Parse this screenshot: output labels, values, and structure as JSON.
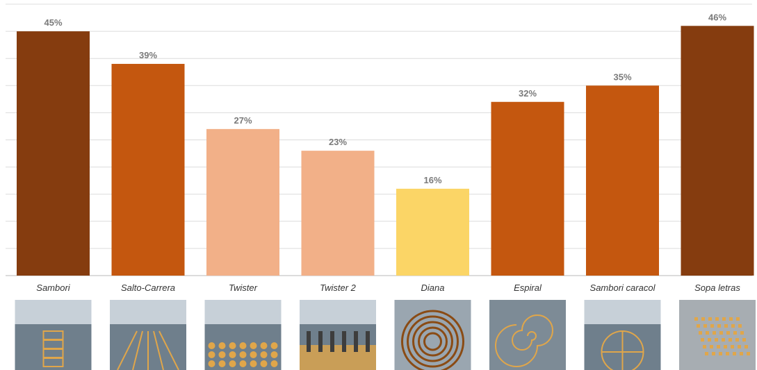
{
  "chart_data": {
    "type": "bar",
    "categories": [
      "Sambori",
      "Salto-Carrera",
      "Twister",
      "Twister 2",
      "Diana",
      "Espiral",
      "Sambori caracol",
      "Sopa letras"
    ],
    "values": [
      45,
      39,
      27,
      23,
      16,
      32,
      35,
      46
    ],
    "value_labels": [
      "45%",
      "39%",
      "27%",
      "23%",
      "16%",
      "32%",
      "35%",
      "46%"
    ],
    "bar_colors": [
      "#853c0f",
      "#c4570f",
      "#f2b088",
      "#f2b088",
      "#fbd566",
      "#c4570f",
      "#c4570f",
      "#853c0f"
    ],
    "ylim": [
      0,
      50
    ],
    "gridlines": true,
    "unit": "%",
    "image_icons": [
      "hopscotch-photo-icon",
      "running-track-photo-icon",
      "twister-dots-photo-icon",
      "children-playing-photo-icon",
      "target-circles-photo-icon",
      "spiral-photo-icon",
      "snail-hopscotch-photo-icon",
      "letter-grid-photo-icon"
    ]
  }
}
